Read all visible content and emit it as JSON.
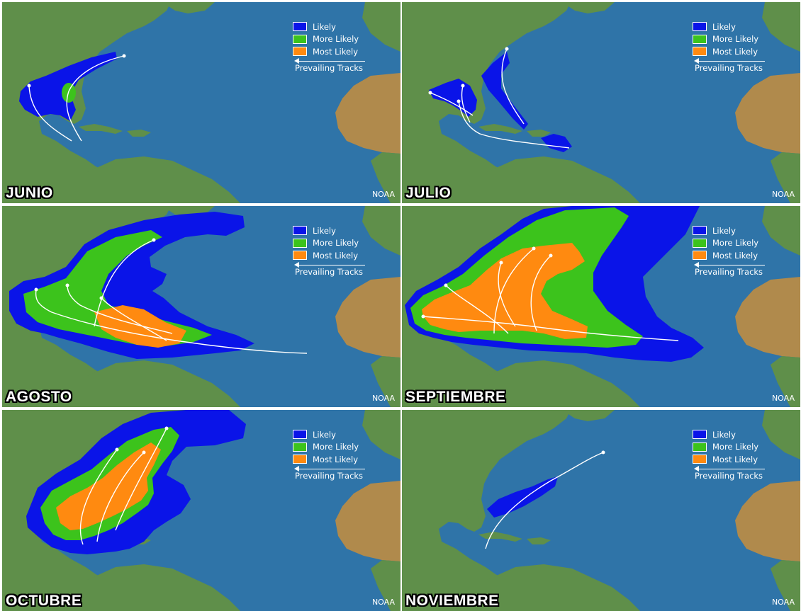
{
  "colors": {
    "ocean": "#2f74a8",
    "land_green": "#5f8f4a",
    "land_desert": "#b08a4c",
    "likely": "#0a14e8",
    "more_likely": "#3cc31c",
    "most_likely": "#ff8a10",
    "track": "#ffffff"
  },
  "legend": {
    "likely": "Likely",
    "more_likely": "More Likely",
    "most_likely": "Most Likely",
    "prevailing": "Prevailing Tracks"
  },
  "credit": "NOAA",
  "panels": [
    {
      "id": "junio",
      "title": "JUNIO"
    },
    {
      "id": "julio",
      "title": "JULIO"
    },
    {
      "id": "agosto",
      "title": "AGOSTO"
    },
    {
      "id": "septiembre",
      "title": "SEPTIEMBRE"
    },
    {
      "id": "octubre",
      "title": "OCTUBRE"
    },
    {
      "id": "noviembre",
      "title": "NOVIEMBRE"
    }
  ]
}
